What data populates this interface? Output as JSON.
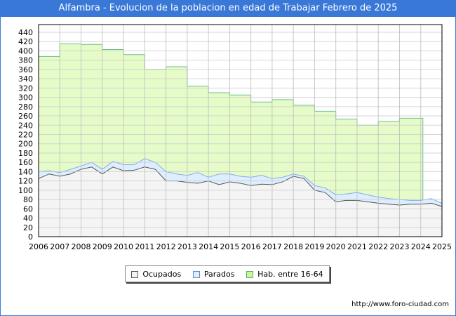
{
  "chart_data": {
    "type": "area",
    "title": "Alfambra - Evolucion de la poblacion en edad de Trabajar Febrero de 2025",
    "xlabel": "",
    "ylabel": "",
    "xlim": [
      2006,
      2025
    ],
    "ylim": [
      0,
      440
    ],
    "x_ticks": [
      "2006",
      "2007",
      "2008",
      "2009",
      "2010",
      "2011",
      "2012",
      "2013",
      "2014",
      "2015",
      "2016",
      "2017",
      "2018",
      "2019",
      "2020",
      "2021",
      "2022",
      "2023",
      "2024",
      "2025"
    ],
    "y_ticks": [
      "0",
      "20",
      "40",
      "60",
      "80",
      "100",
      "120",
      "140",
      "160",
      "180",
      "200",
      "220",
      "240",
      "260",
      "280",
      "300",
      "320",
      "340",
      "360",
      "380",
      "400",
      "420",
      "440"
    ],
    "grid": true,
    "legend_position": "bottom",
    "series": [
      {
        "name": "Hab. entre 16-64",
        "color": "#e6fcc8",
        "line": "#6cbf8a",
        "x": [
          2006,
          2007,
          2008,
          2009,
          2010,
          2011,
          2012,
          2013,
          2014,
          2015,
          2016,
          2017,
          2018,
          2019,
          2020,
          2021,
          2022,
          2023
        ],
        "values": [
          388,
          415,
          414,
          403,
          392,
          360,
          366,
          324,
          310,
          305,
          290,
          295,
          283,
          270,
          253,
          240,
          248,
          255
        ],
        "end": 2024.1
      },
      {
        "name": "Ocupados",
        "color": "#f4f4f4",
        "line": "#555555",
        "x": [
          2006,
          2006.5,
          2007,
          2007.5,
          2008,
          2008.5,
          2009,
          2009.5,
          2010,
          2010.5,
          2011,
          2011.5,
          2012,
          2012.5,
          2013,
          2013.5,
          2014,
          2014.5,
          2015,
          2015.5,
          2016,
          2016.5,
          2017,
          2017.5,
          2018,
          2018.5,
          2019,
          2019.5,
          2020,
          2020.5,
          2021,
          2021.5,
          2022,
          2022.5,
          2023,
          2023.5,
          2024,
          2024.5,
          2025
        ],
        "values": [
          125,
          135,
          130,
          135,
          145,
          150,
          135,
          150,
          142,
          143,
          150,
          145,
          120,
          120,
          117,
          115,
          120,
          112,
          118,
          115,
          110,
          113,
          112,
          118,
          130,
          125,
          100,
          95,
          75,
          78,
          78,
          75,
          72,
          70,
          68,
          70,
          70,
          72,
          65
        ]
      },
      {
        "name": "Parados",
        "color": "#ddeeff",
        "line": "#88aaee",
        "x": [
          2006,
          2006.5,
          2007,
          2007.5,
          2008,
          2008.5,
          2009,
          2009.5,
          2010,
          2010.5,
          2011,
          2011.5,
          2012,
          2012.5,
          2013,
          2013.5,
          2014,
          2014.5,
          2015,
          2015.5,
          2016,
          2016.5,
          2017,
          2017.5,
          2018,
          2018.5,
          2019,
          2019.5,
          2020,
          2020.5,
          2021,
          2021.5,
          2022,
          2022.5,
          2023,
          2023.5,
          2024,
          2024.5,
          2025
        ],
        "values": [
          15,
          7,
          8,
          10,
          7,
          10,
          10,
          12,
          13,
          12,
          18,
          15,
          20,
          15,
          15,
          23,
          8,
          23,
          17,
          15,
          18,
          19,
          13,
          10,
          5,
          5,
          10,
          10,
          15,
          14,
          17,
          15,
          13,
          12,
          12,
          8,
          8,
          10,
          7
        ]
      }
    ]
  },
  "legend": {
    "ocupados": "Ocupados",
    "parados": "Parados",
    "hab": "Hab. entre 16-64"
  },
  "footer": {
    "url": "http://www.foro-ciudad.com"
  }
}
